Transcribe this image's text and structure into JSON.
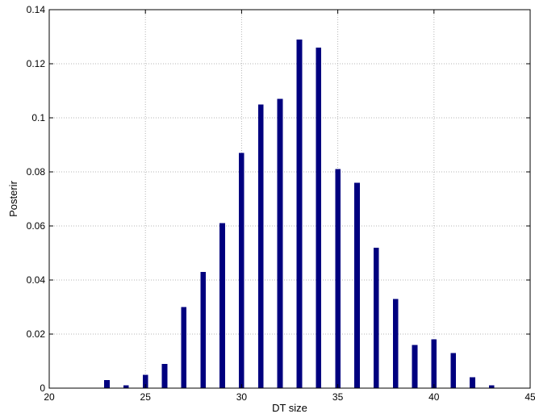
{
  "chart_data": {
    "type": "bar",
    "xlabel": "DT size",
    "ylabel": "Posterir",
    "xlim": [
      20,
      45
    ],
    "ylim": [
      0,
      0.14
    ],
    "xticks": [
      20,
      25,
      30,
      35,
      40,
      45
    ],
    "yticks": [
      0,
      0.02,
      0.04,
      0.06,
      0.08,
      0.1,
      0.12,
      0.14
    ],
    "ytick_labels": [
      "0",
      "0.02",
      "0.04",
      "0.06",
      "0.08",
      "0.1",
      "0.12",
      "0.14"
    ],
    "grid": true,
    "bar_color": "#00007f",
    "x": [
      23,
      24,
      25,
      26,
      27,
      28,
      29,
      30,
      31,
      32,
      33,
      34,
      35,
      36,
      37,
      38,
      39,
      40,
      41,
      42,
      43
    ],
    "values": [
      0.003,
      0.001,
      0.005,
      0.009,
      0.03,
      0.043,
      0.061,
      0.087,
      0.105,
      0.107,
      0.129,
      0.126,
      0.081,
      0.076,
      0.052,
      0.033,
      0.016,
      0.018,
      0.013,
      0.004,
      0.001
    ]
  }
}
